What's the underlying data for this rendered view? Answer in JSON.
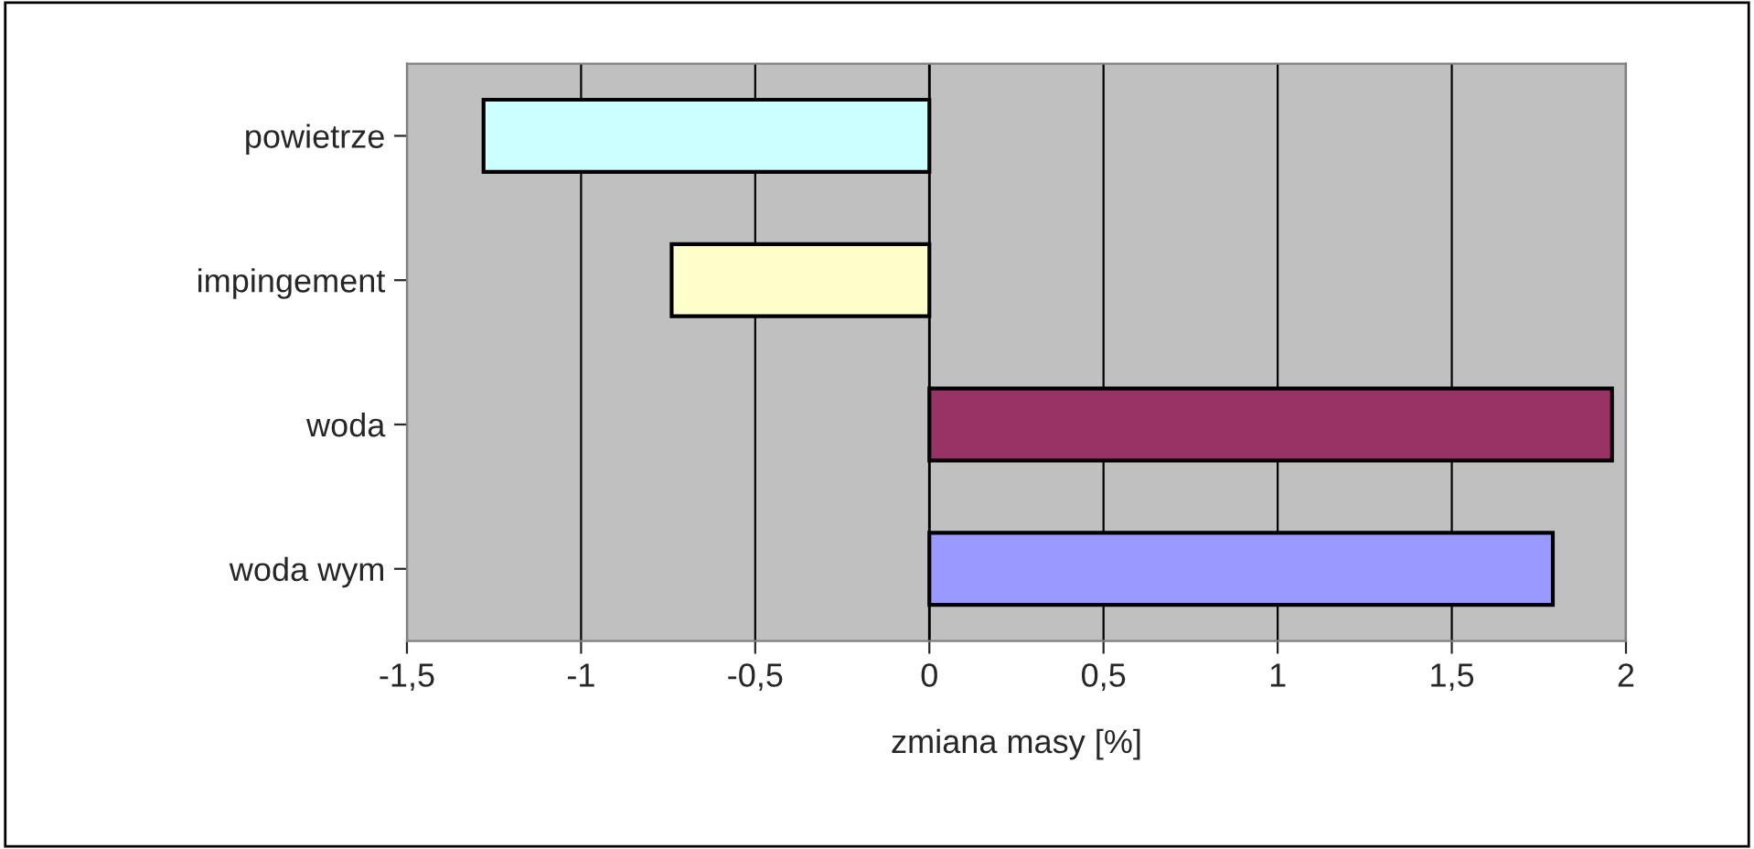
{
  "chart_data": {
    "type": "bar",
    "orientation": "horizontal",
    "xlabel": "zmiana masy [%]",
    "categories": [
      "powietrze",
      "impingement",
      "woda",
      "woda wym"
    ],
    "values": [
      -1.28,
      -0.74,
      1.96,
      1.79
    ],
    "colors": [
      "#ccffff",
      "#ffffcc",
      "#993366",
      "#9999ff"
    ],
    "xlim": [
      -1.5,
      2
    ],
    "xticks": [
      {
        "value": -1.5,
        "label": "-1,5"
      },
      -1,
      {
        "value": -0.5,
        "label": "-0,5"
      },
      0,
      {
        "value": 0.5,
        "label": "0,5"
      },
      1,
      {
        "value": 1.5,
        "label": "1,5"
      },
      2
    ],
    "grid": "x"
  }
}
